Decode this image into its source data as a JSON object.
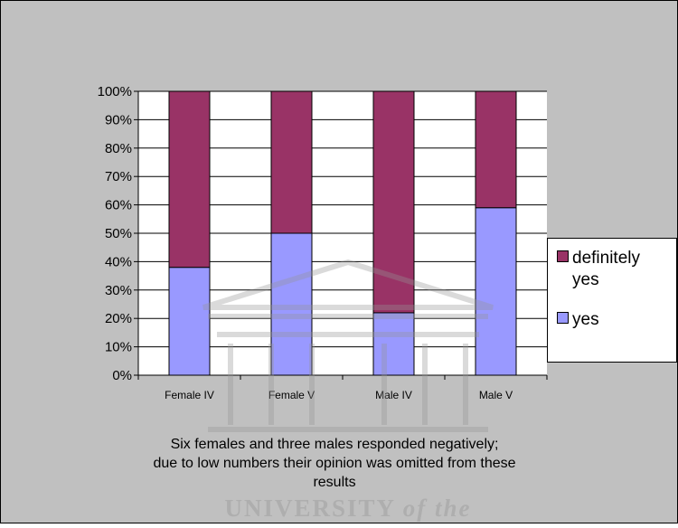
{
  "chart_data": {
    "type": "bar",
    "stacked": true,
    "percent": true,
    "categories": [
      "Female IV",
      "Female V",
      "Male IV",
      "Male V"
    ],
    "series": [
      {
        "name": "yes",
        "values": [
          38,
          50,
          22,
          59
        ],
        "color": "#9999ff"
      },
      {
        "name": "definitely yes",
        "values": [
          62,
          50,
          78,
          41
        ],
        "color": "#993366"
      }
    ],
    "ylim": [
      0,
      100
    ],
    "yticks": [
      "0%",
      "10%",
      "20%",
      "30%",
      "40%",
      "50%",
      "60%",
      "70%",
      "80%",
      "90%",
      "100%"
    ],
    "grid": true,
    "legend": "right",
    "legend_order": [
      "definitely yes",
      "yes"
    ],
    "legend_labels": {
      "definitely yes": [
        "definitely",
        "yes"
      ],
      "yes": "yes"
    },
    "background": "#c0c0c0",
    "plot_background": "#ffffff",
    "annotation": [
      "Six females and three males responded negatively;",
      "due to low numbers their opinion was omitted from these",
      "results"
    ]
  },
  "watermark": {
    "text_parts": [
      "UNIVERSITY",
      "of the"
    ],
    "image": "university-building-logo"
  }
}
